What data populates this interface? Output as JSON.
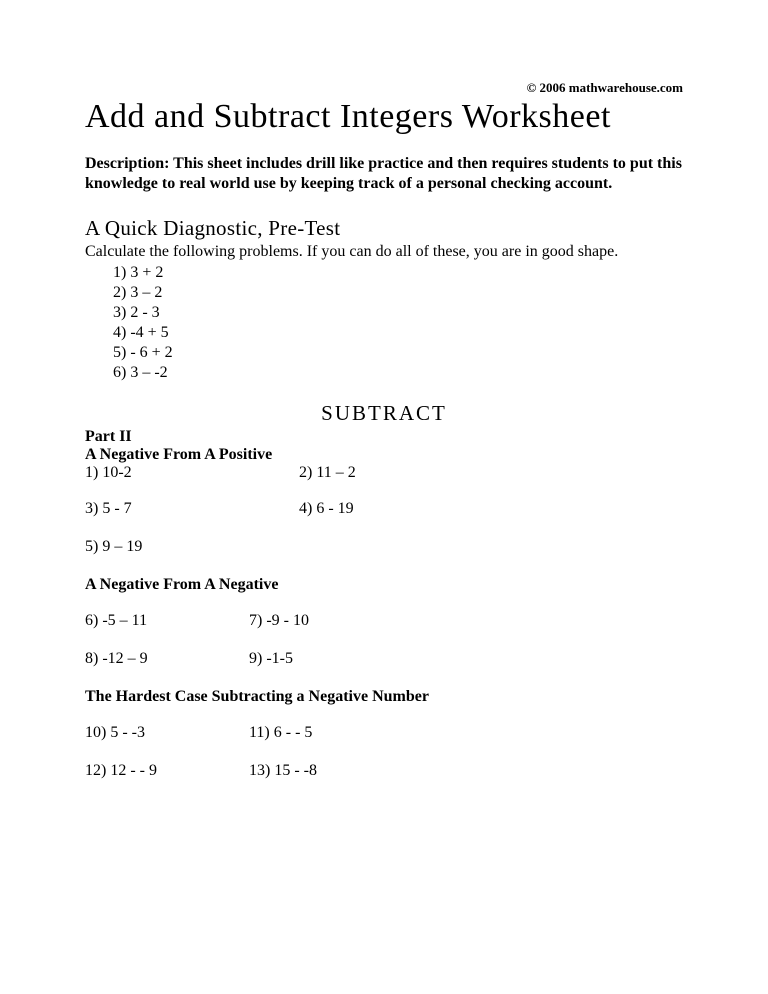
{
  "copyright": "© 2006 mathwarehouse.com",
  "title": "Add and Subtract Integers Worksheet",
  "description": "Description: This sheet includes drill like practice and then requires students to put this knowledge to real world use by keeping  track of a personal checking account.",
  "pretest": {
    "heading": "A  Quick Diagnostic, Pre-Test",
    "sub": "Calculate the following problems. If you can do all of these, you are in good shape.",
    "items": [
      "1)  3 + 2",
      "2)  3 – 2",
      "3)  2 - 3",
      "4)  -4 + 5",
      "5)  - 6 + 2",
      "6)  3 –  -2"
    ]
  },
  "subtract_heading": "SUBTRACT",
  "part2_label": "Part II",
  "sectionA": {
    "heading": "A Negative From A Positive",
    "rows": [
      [
        "1) 10-2",
        "2) 11 – 2"
      ],
      [
        "3)  5 - 7",
        "4) 6 - 19"
      ],
      [
        "5) 9 – 19",
        ""
      ]
    ]
  },
  "sectionB": {
    "heading": "A Negative From A Negative",
    "rows": [
      [
        "6) -5 – 11",
        "7)  -9 - 10"
      ],
      [
        "8) -12 – 9",
        "9) -1-5"
      ]
    ]
  },
  "sectionC": {
    "heading": "The Hardest Case Subtracting a Negative Number",
    "rows": [
      [
        "10) 5 - -3",
        "11)  6 - - 5"
      ],
      [
        "12) 12 - - 9",
        "13) 15 -  -8"
      ]
    ]
  }
}
